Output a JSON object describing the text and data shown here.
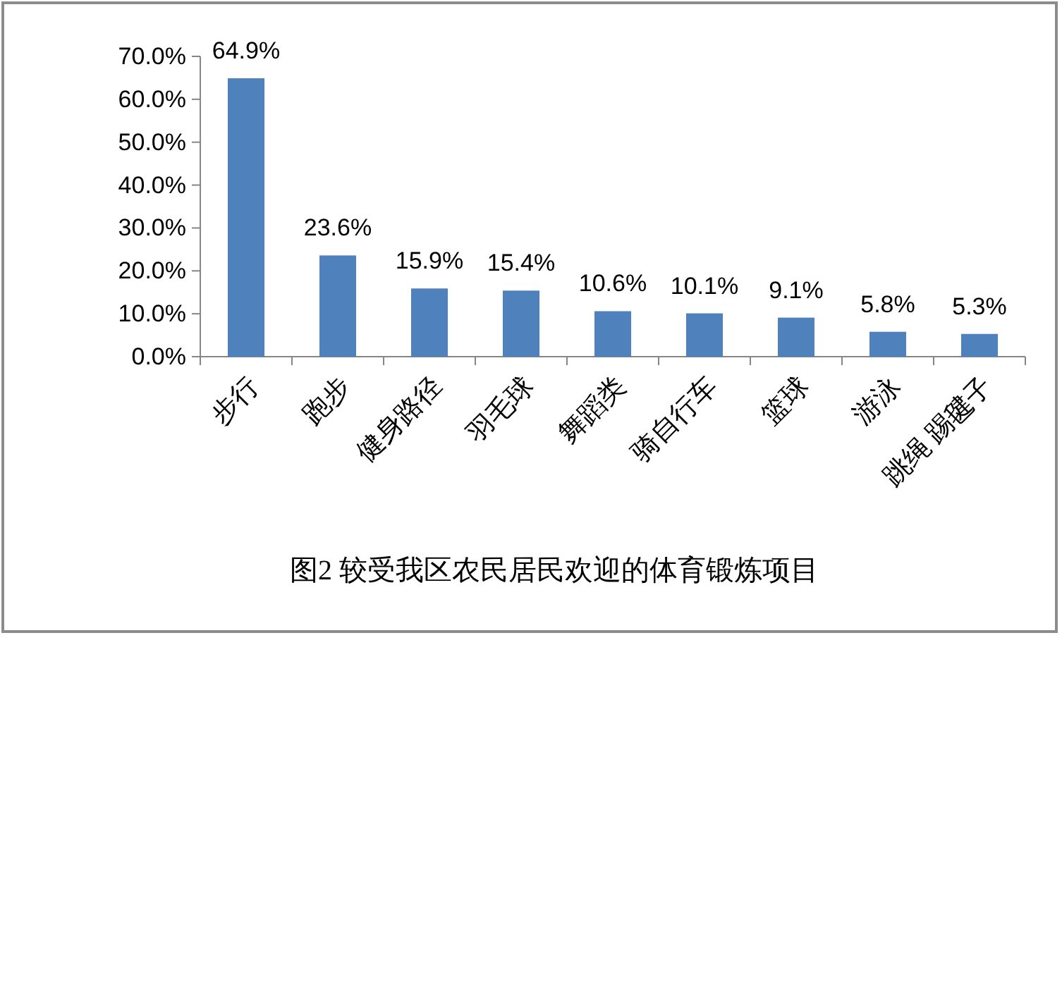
{
  "chart_data": {
    "type": "bar",
    "title": "图2  较受我区农民居民欢迎的体育锻炼项目",
    "categories": [
      "步行",
      "跑步",
      "健身路径",
      "羽毛球",
      "舞蹈类",
      "骑自行车",
      "篮球",
      "游泳",
      "跳绳 踢毽子"
    ],
    "values": [
      64.9,
      23.6,
      15.9,
      15.4,
      10.6,
      10.1,
      9.1,
      5.8,
      5.3
    ],
    "value_labels": [
      "64.9%",
      "23.6%",
      "15.9%",
      "15.4%",
      "10.6%",
      "10.1%",
      "9.1%",
      "5.8%",
      "5.3%"
    ],
    "color": "#4f81bd",
    "ylim": [
      0,
      70
    ],
    "yticks": [
      {
        "value": 0,
        "label": "0.0%"
      },
      {
        "value": 10,
        "label": "10.0%"
      },
      {
        "value": 20,
        "label": "20.0%"
      },
      {
        "value": 30,
        "label": "30.0%"
      },
      {
        "value": 40,
        "label": "40.0%"
      },
      {
        "value": 50,
        "label": "50.0%"
      },
      {
        "value": 60,
        "label": "60.0%"
      },
      {
        "value": 70,
        "label": "70.0%"
      }
    ]
  }
}
